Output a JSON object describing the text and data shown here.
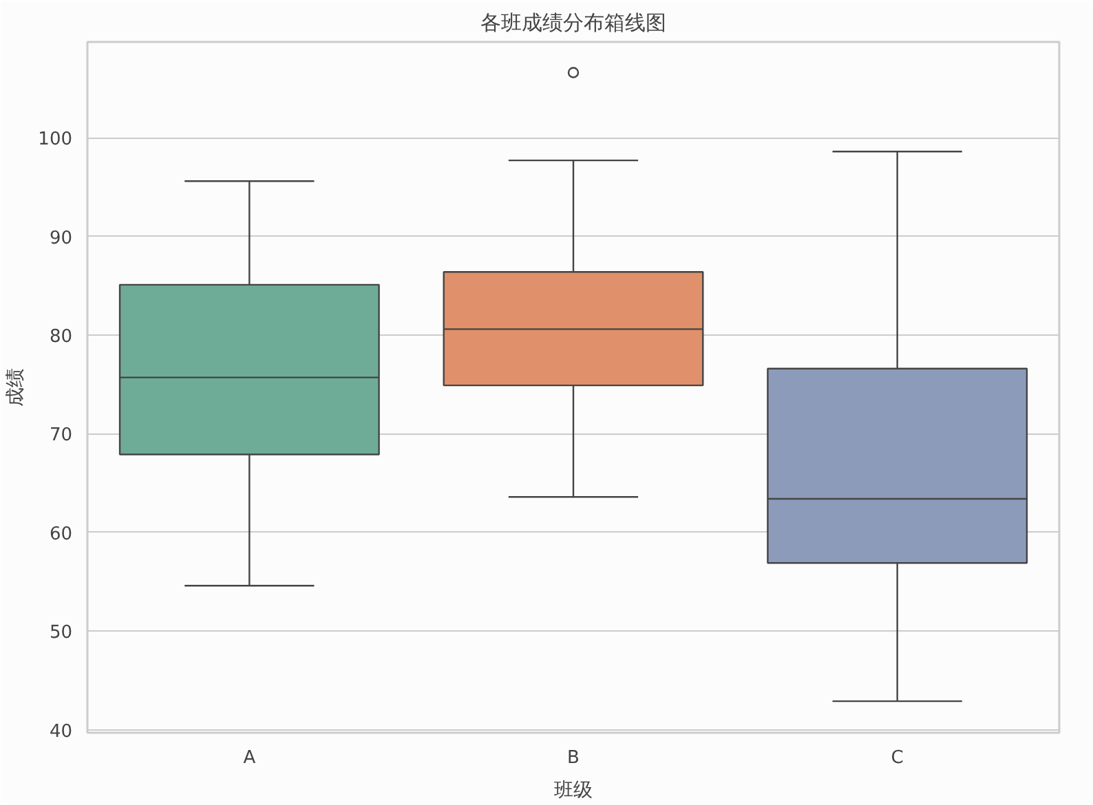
{
  "chart_data": {
    "type": "box",
    "title": "各班成绩分布箱线图",
    "xlabel": "班级",
    "ylabel": "成绩",
    "categories": [
      "A",
      "B",
      "C"
    ],
    "colors": [
      "#6fac97",
      "#e0906a",
      "#8d9bbb"
    ],
    "boxes": [
      {
        "low": 54.6,
        "q1": 67.9,
        "median": 75.7,
        "q3": 85.1,
        "high": 95.6
      },
      {
        "low": 63.6,
        "q1": 74.9,
        "median": 80.6,
        "q3": 86.4,
        "high": 97.7,
        "outliers": [
          106.6
        ]
      },
      {
        "low": 42.9,
        "q1": 56.9,
        "median": 63.4,
        "q3": 76.6,
        "high": 98.6
      }
    ],
    "ylim": [
      39.7,
      109.7
    ],
    "yticks": [
      40,
      50,
      60,
      70,
      80,
      90,
      100
    ],
    "grid": "y"
  }
}
